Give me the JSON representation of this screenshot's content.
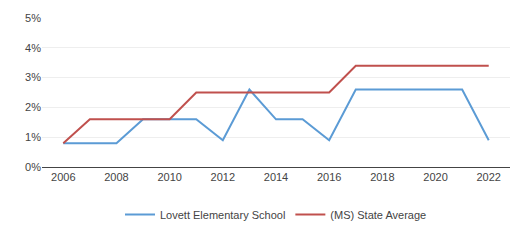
{
  "chart_data": {
    "type": "line",
    "x": [
      2006,
      2007,
      2008,
      2009,
      2010,
      2011,
      2012,
      2013,
      2014,
      2015,
      2016,
      2017,
      2018,
      2019,
      2020,
      2021,
      2022
    ],
    "series": [
      {
        "name": "Lovett Elementary School",
        "color": "#5b9bd5",
        "values": [
          0.008,
          0.008,
          0.008,
          0.016,
          0.016,
          0.016,
          0.009,
          0.026,
          0.016,
          0.016,
          0.009,
          0.026,
          0.026,
          0.026,
          0.026,
          0.026,
          0.009
        ]
      },
      {
        "name": "(MS) State Average",
        "color": "#c0504d",
        "values": [
          0.008,
          0.016,
          0.016,
          0.016,
          0.016,
          0.025,
          0.025,
          0.025,
          0.025,
          0.025,
          0.025,
          0.034,
          0.034,
          0.034,
          0.034,
          0.034,
          0.034
        ]
      }
    ],
    "xlim": [
      2005.2,
      2022.8
    ],
    "xticks": [
      2006,
      2008,
      2010,
      2012,
      2014,
      2016,
      2018,
      2020,
      2022
    ],
    "ylim": [
      0,
      0.05
    ],
    "yticks": [
      {
        "value": 0,
        "label": "0%"
      },
      {
        "value": 0.01,
        "label": "1%"
      },
      {
        "value": 0.02,
        "label": "2%"
      },
      {
        "value": 0.03,
        "label": "3%"
      },
      {
        "value": 0.04,
        "label": "4%"
      },
      {
        "value": 0.05,
        "label": "5%"
      }
    ],
    "grid": "y",
    "legend": "bottom"
  }
}
